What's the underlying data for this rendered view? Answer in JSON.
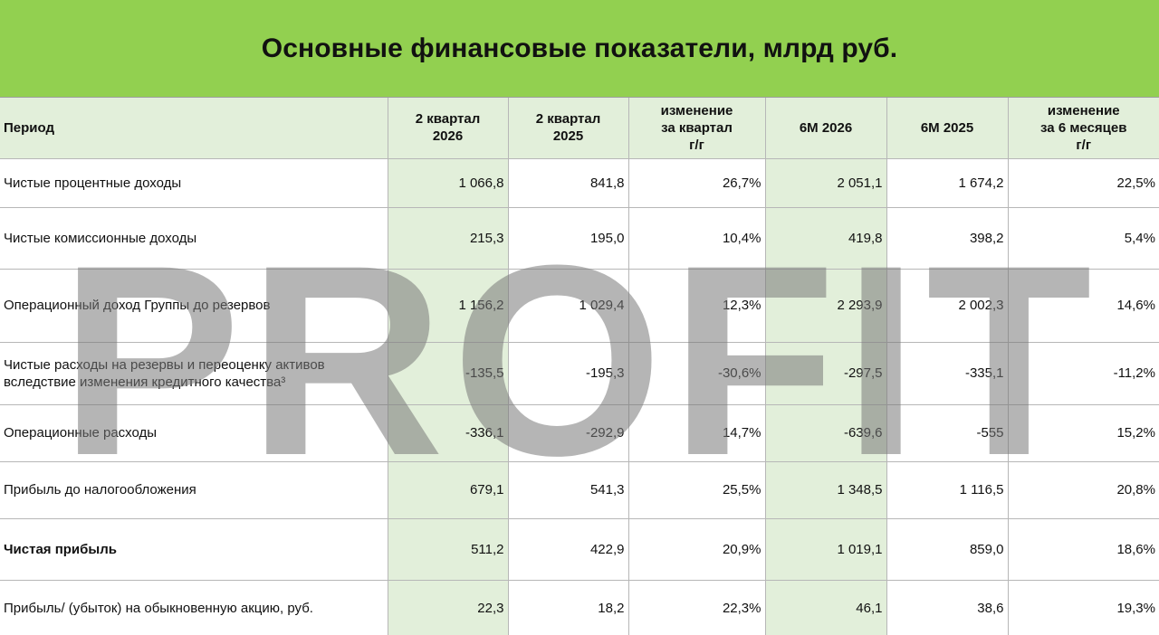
{
  "title": "Основные финансовые показатели, млрд руб.",
  "watermark": "PROFIT",
  "columns": [
    "Период",
    "2 квартал\n2026",
    "2 квартал\n2025",
    "изменение\nза квартал\nг/г",
    "6М 2026",
    "6М 2025",
    "изменение\nза 6 месяцев\nг/г"
  ],
  "rows": [
    {
      "label": "Чистые процентные доходы",
      "values": [
        "1 066,8",
        "841,8",
        "26,7%",
        "2 051,1",
        "1 674,2",
        "22,5%"
      ]
    },
    {
      "label": "Чистые комиссионные доходы",
      "values": [
        "215,3",
        "195,0",
        "10,4%",
        "419,8",
        "398,2",
        "5,4%"
      ]
    },
    {
      "label": "Операционный доход Группы до резервов",
      "values": [
        "1 156,2",
        "1 029,4",
        "12,3%",
        "2 293,9",
        "2 002,3",
        "14,6%"
      ]
    },
    {
      "label": "Чистые расходы на резервы и переоценку активов\nвследствие изменения кредитного качества³",
      "values": [
        "-135,5",
        "-195,3",
        "-30,6%",
        "-297,5",
        "-335,1",
        "-11,2%"
      ]
    },
    {
      "label": "Операционные расходы",
      "values": [
        "-336,1",
        "-292,9",
        "14,7%",
        "-639,6",
        "-555",
        "15,2%"
      ]
    },
    {
      "label": "Прибыль до налогообложения",
      "values": [
        "679,1",
        "541,3",
        "25,5%",
        "1 348,5",
        "1 116,5",
        "20,8%"
      ]
    },
    {
      "label": "Чистая прибыль",
      "values": [
        "511,2",
        "422,9",
        "20,9%",
        "1 019,1",
        "859,0",
        "18,6%"
      ],
      "bold": true
    },
    {
      "label": "Прибыль/ (убыток) на обыкновенную акцию, руб.",
      "values": [
        "22,3",
        "18,2",
        "22,3%",
        "46,1",
        "38,6",
        "19,3%"
      ]
    }
  ],
  "colors": {
    "title_bg": "#92d050",
    "highlight": "#e2efda",
    "border": "#b7b7b7"
  }
}
